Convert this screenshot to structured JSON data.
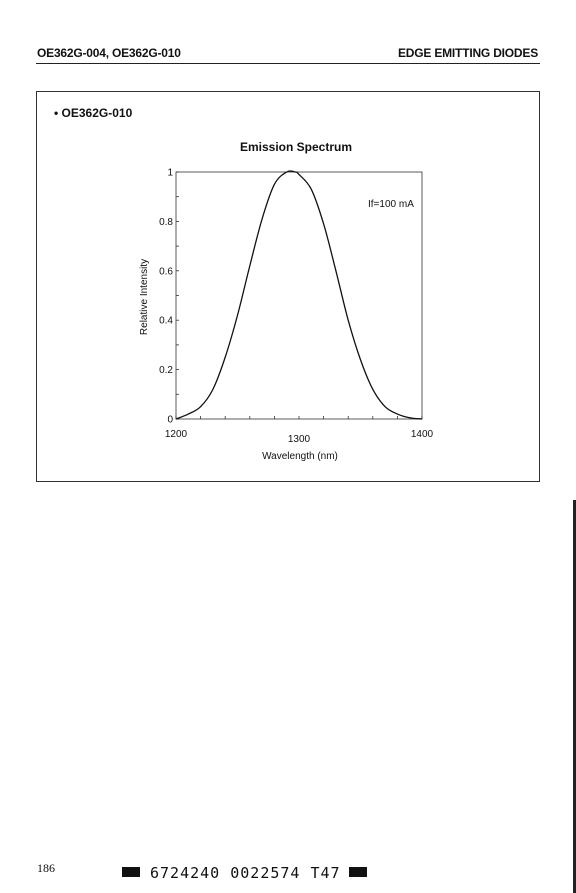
{
  "header": {
    "left": "OE362G-004, OE362G-010",
    "right": "EDGE EMITTING DIODES"
  },
  "section": {
    "model": "• OE362G-010"
  },
  "chart_data": {
    "type": "line",
    "title": "Emission Spectrum",
    "xlabel": "Wavelength (nm)",
    "ylabel": "Relative Intensity",
    "xlim": [
      1200,
      1400
    ],
    "ylim": [
      0,
      1
    ],
    "xticks": [
      "1200",
      "1300",
      "1400"
    ],
    "yticks": [
      "0",
      "0.2",
      "0.4",
      "0.6",
      "0.8",
      "1"
    ],
    "annotation": "If=100 mA",
    "grid": false,
    "series": [
      {
        "x": [
          1200,
          1210,
          1220,
          1230,
          1240,
          1250,
          1260,
          1270,
          1280,
          1290,
          1297,
          1300,
          1310,
          1320,
          1330,
          1340,
          1350,
          1360,
          1370,
          1380,
          1390,
          1400
        ],
        "y": [
          0.0,
          0.02,
          0.05,
          0.12,
          0.25,
          0.42,
          0.62,
          0.81,
          0.95,
          1.0,
          1.0,
          0.99,
          0.93,
          0.79,
          0.6,
          0.4,
          0.24,
          0.12,
          0.05,
          0.02,
          0.005,
          0.0
        ]
      }
    ]
  },
  "footer": {
    "page_number": "186",
    "barcode_text": "6724240 0022574 T47"
  }
}
